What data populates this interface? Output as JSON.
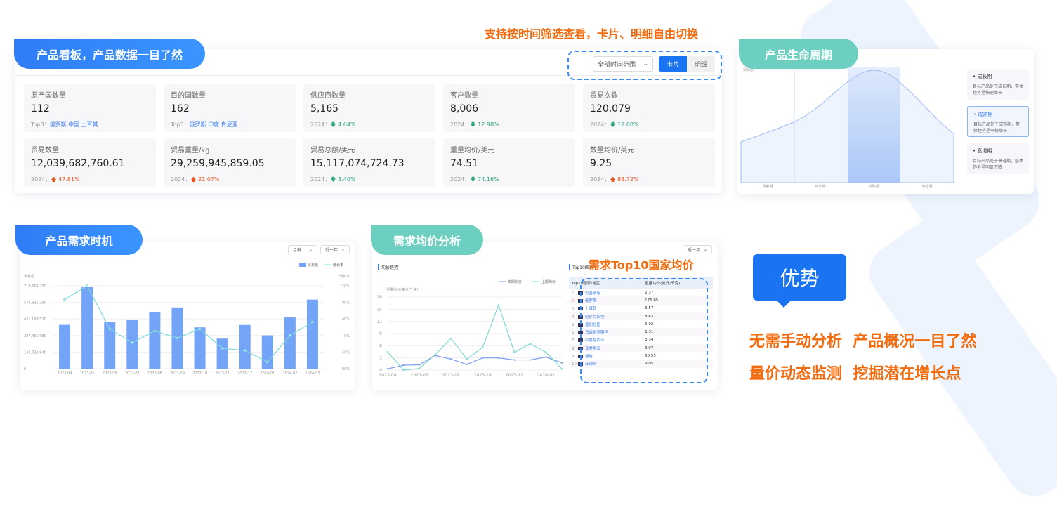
{
  "annotations": {
    "filter_note": "支持按时间筛选查看，卡片、明细自由切换",
    "top10_note": "需求Top10国家均价"
  },
  "board": {
    "title": "产品看板，产品数据一目了然",
    "time_select": "全部时间范围",
    "view_card": "卡片",
    "view_detail": "明细",
    "cards": [
      {
        "label": "原产国数量",
        "value": "112",
        "sub_prefix": "Top3：",
        "sub_top": "俄罗斯 中国 土耳其"
      },
      {
        "label": "目的国数量",
        "value": "162",
        "sub_prefix": "Top3：",
        "sub_top": "俄罗斯 印度 肯尼亚"
      },
      {
        "label": "供应商数量",
        "value": "5,165",
        "sub_prefix": "2024：",
        "trend": "down",
        "change": "4.64%"
      },
      {
        "label": "客户数量",
        "value": "8,006",
        "sub_prefix": "2024：",
        "trend": "down",
        "change": "12.98%"
      },
      {
        "label": "贸易次数",
        "value": "120,079",
        "sub_prefix": "2024：",
        "trend": "down",
        "change": "12.08%"
      },
      {
        "label": "贸易数量",
        "value": "12,039,682,760.61",
        "sub_prefix": "2024：",
        "trend": "up",
        "change": "47.81%"
      },
      {
        "label": "贸易重量/kg",
        "value": "29,259,945,859.05",
        "sub_prefix": "2024：",
        "trend": "up",
        "change": "21.07%"
      },
      {
        "label": "贸易总额/美元",
        "value": "15,117,074,724.73",
        "sub_prefix": "2024：",
        "trend": "down",
        "change": "3.40%"
      },
      {
        "label": "重量均价/美元",
        "value": "74.51",
        "sub_prefix": "2024：",
        "trend": "down",
        "change": "74.16%"
      },
      {
        "label": "数量均价/美元",
        "value": "9.25",
        "sub_prefix": "2024：",
        "trend": "up",
        "change": "83.72%"
      }
    ]
  },
  "lifecycle": {
    "title": "产品生命周期",
    "axis_label": "贸易额",
    "phases": [
      "探索期",
      "成长期",
      "成熟期",
      "衰退期"
    ],
    "active_phase": "成熟期",
    "stages": [
      {
        "title": "成长期",
        "desc": "目标产品处于成长期，整体趋势呈快速增长"
      },
      {
        "title": "成熟期",
        "desc": "目标产品处于成熟期，整体趋势呈平稳增长"
      },
      {
        "title": "衰退期",
        "desc": "目标产品处于衰退期，整体趋势呈明显下降"
      }
    ]
  },
  "demand": {
    "title": "产品需求时机",
    "period_select": "月度",
    "range_select": "近一年"
  },
  "price": {
    "title": "需求均价分析",
    "range_select": "近一年",
    "trend_title": "均价趋势",
    "top10_title": "Top10国家",
    "table_headers": [
      "Top10国家/地区",
      "重量均价(美元/千克)"
    ],
    "table_rows": [
      {
        "rank": "1",
        "country": "巴基斯坦",
        "price": "2.37"
      },
      {
        "rank": "2",
        "country": "俄罗斯",
        "price": "176.65"
      },
      {
        "rank": "3",
        "country": "土耳其",
        "price": "3.57"
      },
      {
        "rank": "4",
        "country": "哈萨克斯坦",
        "price": "8.63"
      },
      {
        "rank": "5",
        "country": "孟加拉国",
        "price": "5.02"
      },
      {
        "rank": "6",
        "country": "乌兹别克斯坦",
        "price": "1.31"
      },
      {
        "rank": "7",
        "country": "印度尼西亚",
        "price": "3.34"
      },
      {
        "rank": "8",
        "country": "亚美尼亚",
        "price": "3.97"
      },
      {
        "rank": "9",
        "country": "秘鲁",
        "price": "60.55"
      },
      {
        "rank": "10",
        "country": "菲律宾",
        "price": "9.05"
      }
    ]
  },
  "advantage": {
    "badge": "优势",
    "line1": "无需手动分析  产品概况一目了然",
    "line2": "量价动态监测  挖掘潜在增长点"
  },
  "chart_data": [
    {
      "type": "bar",
      "title": "",
      "categories": [
        "2023-04",
        "2023-05",
        "2023-06",
        "2023-07",
        "2023-08",
        "2023-09",
        "2023-10",
        "2023-11",
        "2023-12",
        "2024-01",
        "2024-02",
        "2024-03"
      ],
      "ylabel": "贸易额",
      "y2label": "增长率",
      "ylim": [
        0,
        718664200
      ],
      "yticks": [
        "0",
        "143,732,840",
        "287,465,680",
        "431,198,520",
        "574,931,360",
        "718,664,200"
      ],
      "y2lim": [
        -80,
        120
      ],
      "y2ticks": [
        "-80%",
        "-40%",
        "0%",
        "40%",
        "80%",
        "120%"
      ],
      "legend": "top-right",
      "series": [
        {
          "name": "贸易额",
          "type": "bar",
          "color": "#74a4f7",
          "values": [
            380000000,
            710000000,
            407000000,
            423000000,
            487000000,
            531000000,
            358000000,
            261000000,
            379000000,
            289000000,
            448000000,
            599000000
          ]
        },
        {
          "name": "增长率",
          "type": "line",
          "color": "#7fd8dc",
          "values": [
            87,
            120,
            16,
            -17,
            11,
            -6,
            16,
            -31,
            -36,
            -64,
            0,
            33
          ]
        }
      ]
    },
    {
      "type": "line",
      "title": "",
      "ylabel": "重量均价(美元/千克)",
      "x": [
        "2023-04",
        "2023-05",
        "2023-06",
        "2023-07",
        "2023-08",
        "2023-09",
        "2023-10",
        "2023-11",
        "2023-12",
        "2024-01",
        "2024-02",
        "2024-03"
      ],
      "xticks": [
        "2023-04",
        "2023-06",
        "2023-08",
        "2023-10",
        "2023-12",
        "2024-02"
      ],
      "ylim": [
        0,
        18
      ],
      "yticks": [
        "0",
        "3",
        "6",
        "9",
        "12",
        "15",
        "18"
      ],
      "legend": "top-right",
      "series": [
        {
          "name": "本期均价",
          "color": "#7b9cf0",
          "values": [
            0.3,
            1.2,
            1.3,
            3.6,
            2.7,
            1.4,
            3.0,
            3.0,
            2.5,
            2.5,
            3.2,
            1.8
          ]
        },
        {
          "name": "上期均价",
          "color": "#7fd8cf",
          "values": [
            4.5,
            0,
            0.4,
            3.8,
            7.8,
            2.7,
            5.6,
            16.0,
            4.4,
            6.5,
            4.4,
            0.3
          ]
        }
      ]
    }
  ]
}
